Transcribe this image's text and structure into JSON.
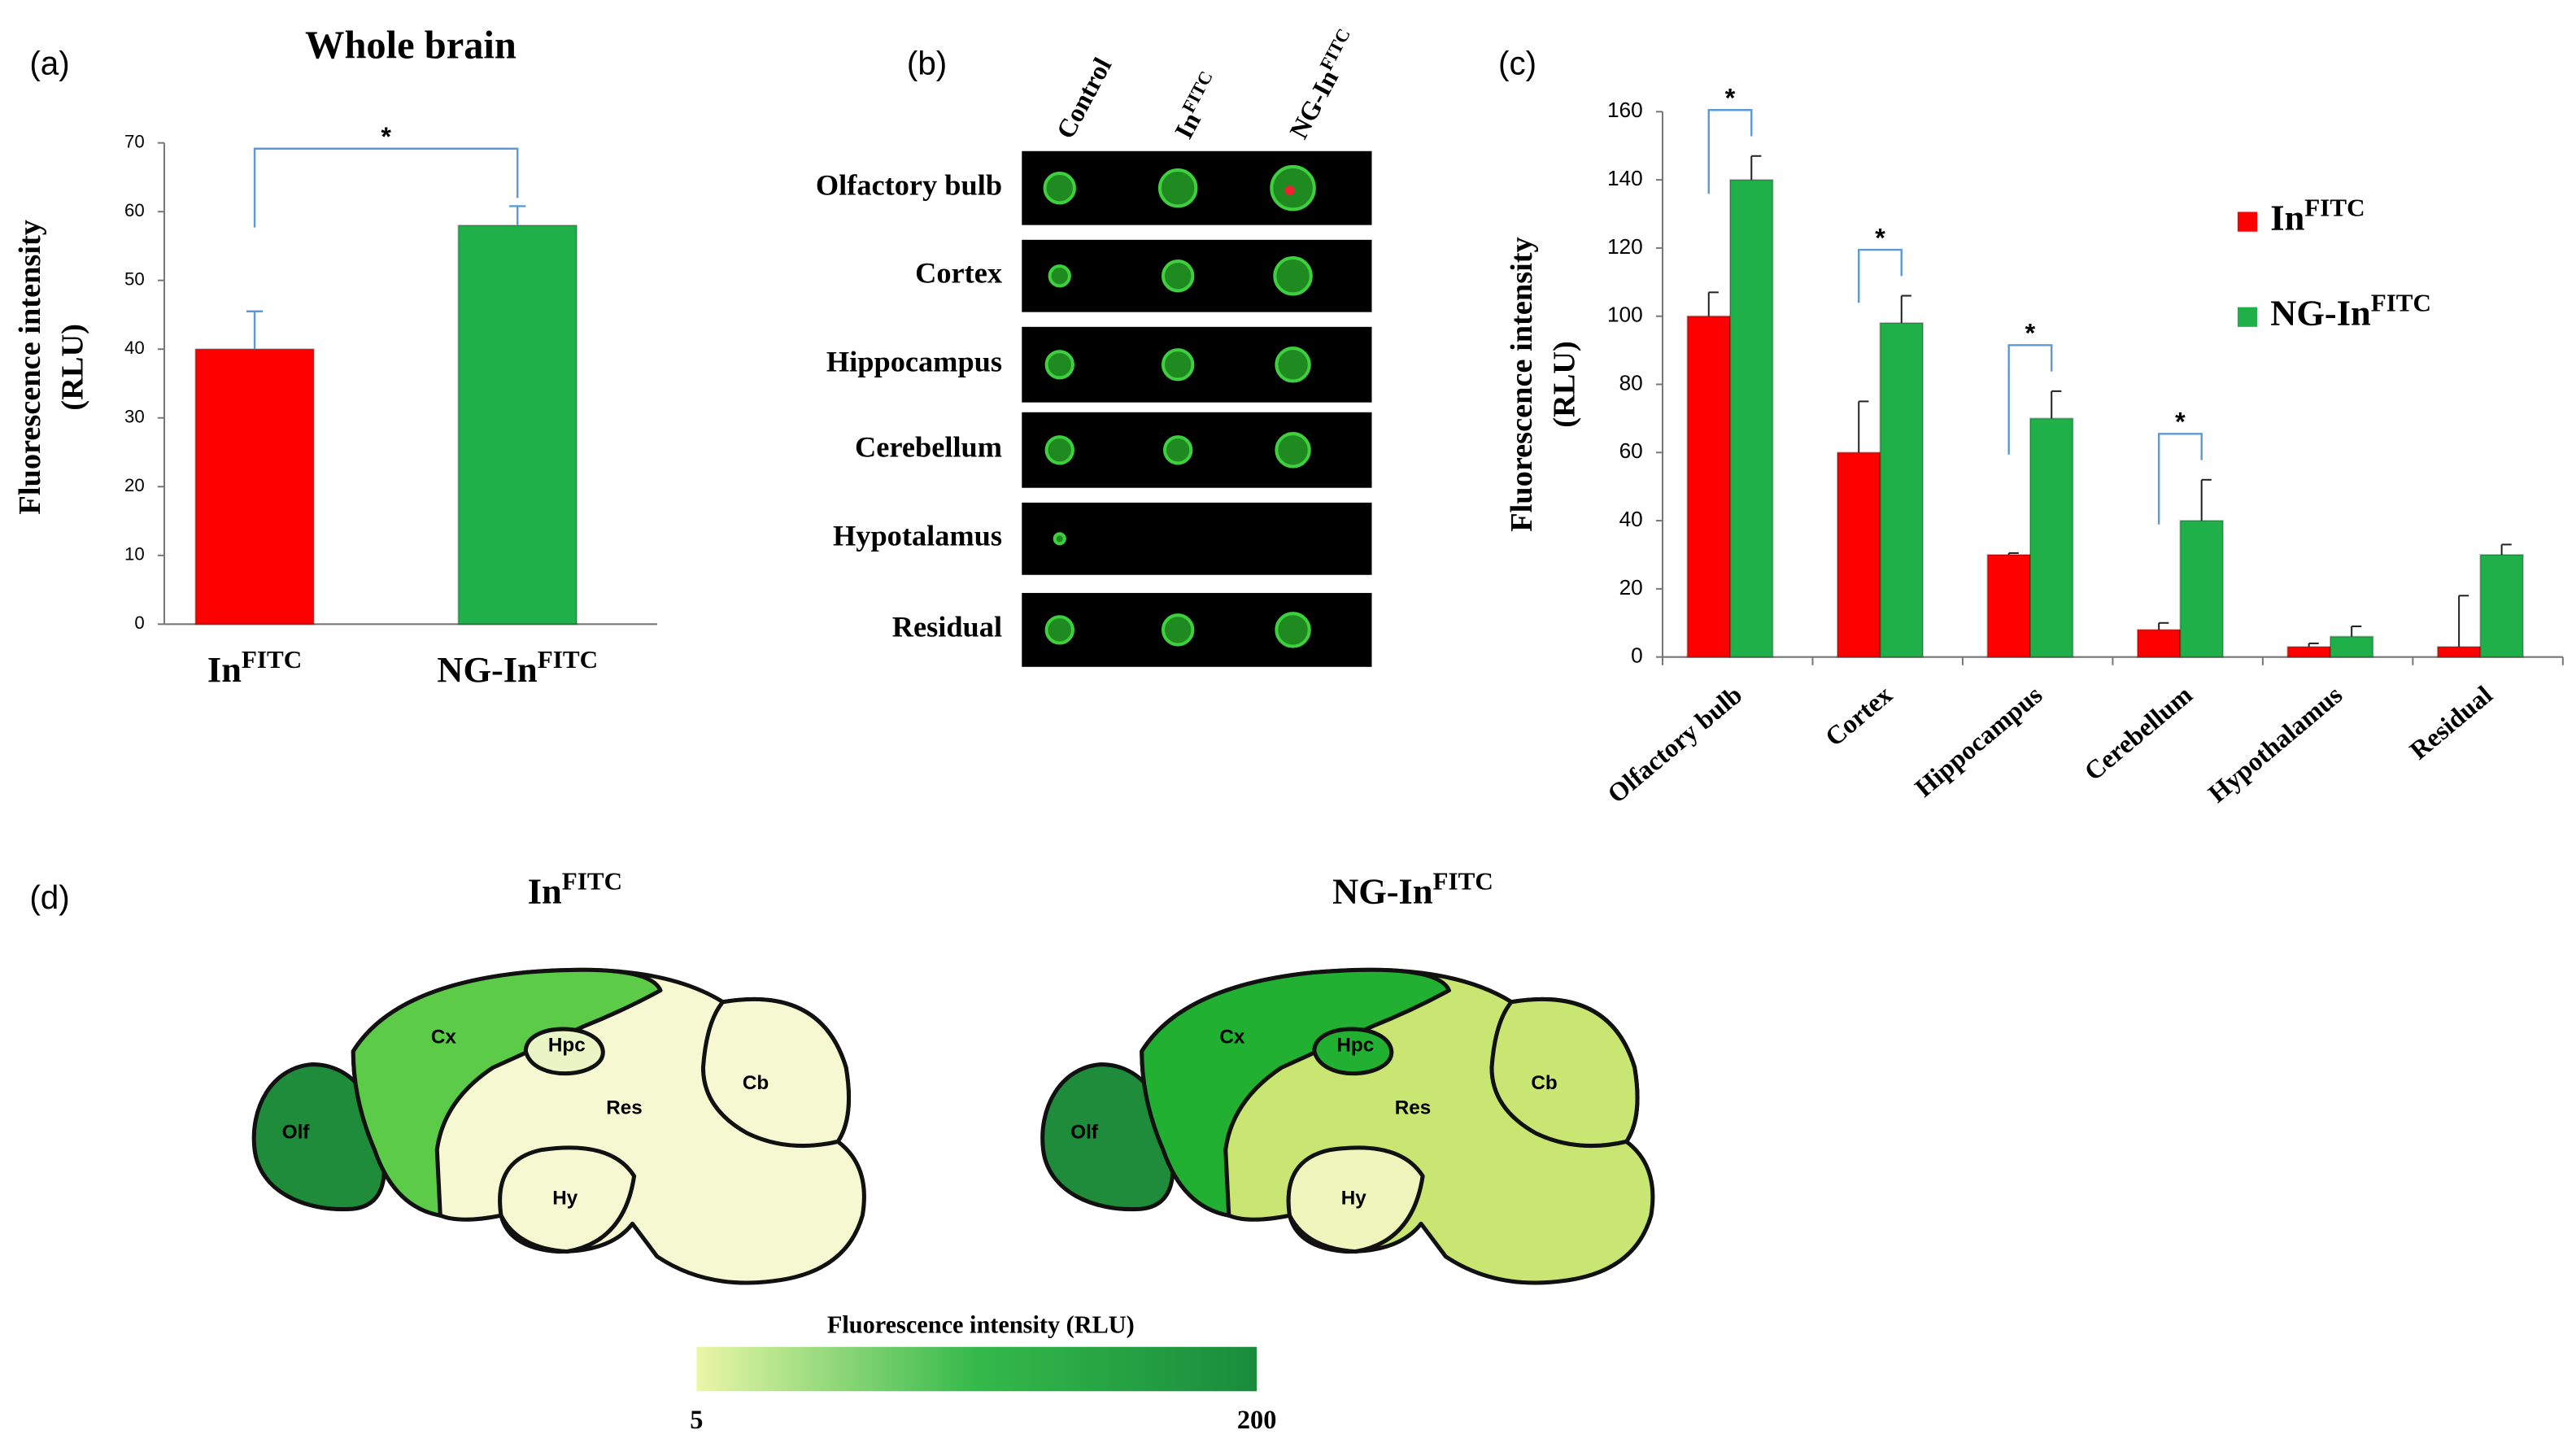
{
  "chart_data": [
    {
      "type": "bar",
      "panel_label": "(a)",
      "title": "Whole brain",
      "y_label": [
        "Fluorescence intensity",
        "(RLU)"
      ],
      "categories": [
        {
          "text": "In",
          "sup": "FITC"
        },
        {
          "text": "NG-In",
          "sup": "FITC"
        }
      ],
      "values": [
        40,
        58
      ],
      "errors": [
        5.5,
        2.8
      ],
      "colors": [
        "#ff0000",
        "#1fb04a"
      ],
      "ylim": [
        0,
        70
      ],
      "yticks": [
        0,
        10,
        20,
        30,
        40,
        50,
        60,
        70
      ],
      "significance": "*"
    },
    {
      "type": "grouped_bar",
      "panel_label": "(c)",
      "y_label": [
        "Fluorescence intensity",
        "(RLU)"
      ],
      "categories": [
        "Olfactory bulb",
        "Cortex",
        "Hippocampus",
        "Cerebellum",
        "Hypothalamus",
        "Residual"
      ],
      "series": [
        {
          "name": {
            "text": "In",
            "sup": "FITC"
          },
          "color": "#ff0000",
          "values": [
            100,
            60,
            30,
            8,
            3,
            3
          ],
          "errors": [
            7,
            15,
            0.5,
            2,
            1,
            15
          ]
        },
        {
          "name": {
            "text": "NG-In",
            "sup": "FITC"
          },
          "color": "#1fb04a",
          "values": [
            140,
            98,
            70,
            40,
            6,
            30
          ],
          "errors": [
            7,
            8,
            8,
            12,
            3,
            3
          ]
        }
      ],
      "ylim": [
        0,
        160
      ],
      "yticks": [
        0,
        20,
        40,
        60,
        80,
        100,
        120,
        140,
        160
      ],
      "significance": [
        "*",
        "*",
        "*",
        "*",
        null,
        null
      ],
      "legend": "right"
    }
  ],
  "panel_b": {
    "label": "(b)",
    "columns": [
      {
        "text": "Control"
      },
      {
        "text": "In",
        "sup": "FITC"
      },
      {
        "text": "NG-In",
        "sup": "FITC"
      }
    ],
    "rows": [
      "Olfactory bulb",
      "Cortex",
      "Hippocampus",
      "Cerebellum",
      "Hypotalamus",
      "Residual"
    ]
  },
  "panel_d": {
    "label": "(d)",
    "region_labels": [
      "Olf",
      "Cx",
      "Hpc",
      "Res",
      "Cb",
      "Hy"
    ],
    "brains": [
      {
        "title": {
          "text": "In",
          "sup": "FITC"
        },
        "colors": [
          "#1e8c3a",
          "#5ccc48",
          "#e9f5c4",
          "#f6f8d2",
          "#f6f8d2",
          "#f6f8d2"
        ]
      },
      {
        "title": {
          "text": "NG-In",
          "sup": "FITC"
        },
        "colors": [
          "#1e8c3a",
          "#22b033",
          "#22b033",
          "#c9e672",
          "#c9e672",
          "#eef5bd"
        ]
      }
    ],
    "colorbar": {
      "title": "Fluorescence intensity (RLU)",
      "min": 5,
      "max": 200,
      "colors": [
        "#eaf6a8",
        "#34b94a",
        "#198c3c"
      ]
    }
  }
}
